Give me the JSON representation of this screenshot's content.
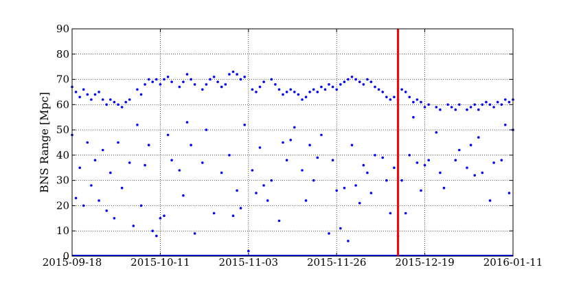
{
  "chart_data": {
    "type": "scatter",
    "title": "",
    "xlabel": "",
    "ylabel": "BNS Range [Mpc]",
    "x_axis_type": "date",
    "xlim": [
      "2015-09-18",
      "2016-01-11"
    ],
    "ylim": [
      0,
      90
    ],
    "x_tick_labels": [
      "2015-09-18",
      "2015-10-11",
      "2015-11-03",
      "2015-11-26",
      "2015-12-19",
      "2016-01-11"
    ],
    "y_tick_labels": [
      "0",
      "10",
      "20",
      "30",
      "40",
      "50",
      "60",
      "70",
      "80",
      "90"
    ],
    "y_ticks": [
      0,
      10,
      20,
      30,
      40,
      50,
      60,
      70,
      80,
      90
    ],
    "grid": true,
    "grid_style": "dotted",
    "marker_color": "#0000ff",
    "vline": {
      "x": "2015-12-12",
      "color": "#ff0000"
    },
    "series": [
      {
        "values_description_note": "",
        "points": [
          [
            "2015-09-18",
            67
          ],
          [
            "2015-09-19",
            65
          ],
          [
            "2015-09-20",
            63
          ],
          [
            "2015-09-21",
            66
          ],
          [
            "2015-09-22",
            64
          ],
          [
            "2015-09-23",
            62
          ],
          [
            "2015-09-24",
            64
          ],
          [
            "2015-09-25",
            65
          ],
          [
            "2015-09-26",
            62
          ],
          [
            "2015-09-27",
            60
          ],
          [
            "2015-09-28",
            62
          ],
          [
            "2015-09-29",
            61
          ],
          [
            "2015-09-30",
            60
          ],
          [
            "2015-10-01",
            59
          ],
          [
            "2015-10-02",
            61
          ],
          [
            "2015-10-03",
            62
          ],
          [
            "2015-10-05",
            66
          ],
          [
            "2015-10-06",
            64
          ],
          [
            "2015-10-07",
            68
          ],
          [
            "2015-10-08",
            70
          ],
          [
            "2015-10-09",
            69
          ],
          [
            "2015-10-10",
            70
          ],
          [
            "2015-10-11",
            68
          ],
          [
            "2015-10-12",
            70
          ],
          [
            "2015-10-13",
            71
          ],
          [
            "2015-10-14",
            69
          ],
          [
            "2015-10-16",
            67
          ],
          [
            "2015-10-17",
            69
          ],
          [
            "2015-10-18",
            72
          ],
          [
            "2015-10-19",
            70
          ],
          [
            "2015-10-20",
            68
          ],
          [
            "2015-10-22",
            66
          ],
          [
            "2015-10-23",
            68
          ],
          [
            "2015-10-24",
            70
          ],
          [
            "2015-10-25",
            71
          ],
          [
            "2015-10-26",
            69
          ],
          [
            "2015-10-27",
            67
          ],
          [
            "2015-10-28",
            68
          ],
          [
            "2015-10-29",
            72
          ],
          [
            "2015-10-30",
            73
          ],
          [
            "2015-10-31",
            72
          ],
          [
            "2015-11-01",
            70
          ],
          [
            "2015-11-02",
            71
          ],
          [
            "2015-11-04",
            66
          ],
          [
            "2015-11-05",
            65
          ],
          [
            "2015-11-06",
            67
          ],
          [
            "2015-11-07",
            69
          ],
          [
            "2015-11-09",
            70
          ],
          [
            "2015-11-10",
            68
          ],
          [
            "2015-11-11",
            66
          ],
          [
            "2015-11-12",
            64
          ],
          [
            "2015-11-13",
            65
          ],
          [
            "2015-11-14",
            66
          ],
          [
            "2015-11-15",
            65
          ],
          [
            "2015-11-16",
            64
          ],
          [
            "2015-11-17",
            62
          ],
          [
            "2015-11-18",
            63
          ],
          [
            "2015-11-19",
            65
          ],
          [
            "2015-11-20",
            66
          ],
          [
            "2015-11-21",
            65
          ],
          [
            "2015-11-22",
            67
          ],
          [
            "2015-11-23",
            66
          ],
          [
            "2015-11-24",
            68
          ],
          [
            "2015-11-25",
            67
          ],
          [
            "2015-11-26",
            66
          ],
          [
            "2015-11-27",
            68
          ],
          [
            "2015-11-28",
            69
          ],
          [
            "2015-11-29",
            70
          ],
          [
            "2015-11-30",
            71
          ],
          [
            "2015-12-01",
            70
          ],
          [
            "2015-12-02",
            69
          ],
          [
            "2015-12-03",
            68
          ],
          [
            "2015-12-04",
            70
          ],
          [
            "2015-12-05",
            69
          ],
          [
            "2015-12-06",
            67
          ],
          [
            "2015-12-07",
            66
          ],
          [
            "2015-12-08",
            65
          ],
          [
            "2015-12-09",
            63
          ],
          [
            "2015-12-10",
            62
          ],
          [
            "2015-12-11",
            63
          ],
          [
            "2015-12-12",
            62
          ],
          [
            "2015-12-13",
            66
          ],
          [
            "2015-12-14",
            65
          ],
          [
            "2015-12-15",
            63
          ],
          [
            "2015-12-16",
            61
          ],
          [
            "2015-12-17",
            62
          ],
          [
            "2015-12-18",
            61
          ],
          [
            "2015-12-19",
            59
          ],
          [
            "2015-12-20",
            60
          ],
          [
            "2015-12-22",
            59
          ],
          [
            "2015-12-23",
            58
          ],
          [
            "2015-12-25",
            60
          ],
          [
            "2015-12-26",
            59
          ],
          [
            "2015-12-27",
            58
          ],
          [
            "2015-12-28",
            60
          ],
          [
            "2015-12-30",
            58
          ],
          [
            "2015-12-31",
            59
          ],
          [
            "2016-01-01",
            60
          ],
          [
            "2016-01-02",
            58
          ],
          [
            "2016-01-03",
            60
          ],
          [
            "2016-01-04",
            61
          ],
          [
            "2016-01-05",
            60
          ],
          [
            "2016-01-06",
            59
          ],
          [
            "2016-01-07",
            61
          ],
          [
            "2016-01-08",
            60
          ],
          [
            "2016-01-09",
            62
          ],
          [
            "2016-01-10",
            61
          ],
          [
            "2016-01-11",
            62
          ],
          [
            "2015-09-18",
            48
          ],
          [
            "2015-09-19",
            23
          ],
          [
            "2015-09-20",
            35
          ],
          [
            "2015-09-21",
            20
          ],
          [
            "2015-09-22",
            45
          ],
          [
            "2015-09-23",
            28
          ],
          [
            "2015-09-24",
            38
          ],
          [
            "2015-09-25",
            22
          ],
          [
            "2015-09-26",
            42
          ],
          [
            "2015-09-27",
            18
          ],
          [
            "2015-09-28",
            33
          ],
          [
            "2015-09-29",
            15
          ],
          [
            "2015-09-30",
            45
          ],
          [
            "2015-10-01",
            27
          ],
          [
            "2015-10-03",
            37
          ],
          [
            "2015-10-04",
            12
          ],
          [
            "2015-10-05",
            52
          ],
          [
            "2015-10-06",
            20
          ],
          [
            "2015-10-07",
            36
          ],
          [
            "2015-10-08",
            44
          ],
          [
            "2015-10-09",
            10
          ],
          [
            "2015-10-10",
            8
          ],
          [
            "2015-10-11",
            15
          ],
          [
            "2015-10-12",
            16
          ],
          [
            "2015-10-13",
            48
          ],
          [
            "2015-10-14",
            38
          ],
          [
            "2015-10-16",
            34
          ],
          [
            "2015-10-17",
            24
          ],
          [
            "2015-10-18",
            53
          ],
          [
            "2015-10-19",
            44
          ],
          [
            "2015-10-20",
            9
          ],
          [
            "2015-10-22",
            37
          ],
          [
            "2015-10-23",
            50
          ],
          [
            "2015-10-25",
            17
          ],
          [
            "2015-10-27",
            33
          ],
          [
            "2015-10-29",
            40
          ],
          [
            "2015-10-30",
            16
          ],
          [
            "2015-10-31",
            26
          ],
          [
            "2015-11-01",
            19
          ],
          [
            "2015-11-02",
            52
          ],
          [
            "2015-11-03",
            2
          ],
          [
            "2015-11-04",
            34
          ],
          [
            "2015-11-05",
            25
          ],
          [
            "2015-11-06",
            43
          ],
          [
            "2015-11-07",
            28
          ],
          [
            "2015-11-08",
            22
          ],
          [
            "2015-11-09",
            30
          ],
          [
            "2015-11-11",
            14
          ],
          [
            "2015-11-12",
            45
          ],
          [
            "2015-11-13",
            38
          ],
          [
            "2015-11-14",
            46
          ],
          [
            "2015-11-15",
            51
          ],
          [
            "2015-11-17",
            34
          ],
          [
            "2015-11-18",
            22
          ],
          [
            "2015-11-19",
            44
          ],
          [
            "2015-11-20",
            30
          ],
          [
            "2015-11-21",
            39
          ],
          [
            "2015-11-22",
            48
          ],
          [
            "2015-11-24",
            9
          ],
          [
            "2015-11-25",
            38
          ],
          [
            "2015-11-26",
            26
          ],
          [
            "2015-11-27",
            11
          ],
          [
            "2015-11-28",
            27
          ],
          [
            "2015-11-29",
            6
          ],
          [
            "2015-11-30",
            44
          ],
          [
            "2015-12-01",
            28
          ],
          [
            "2015-12-02",
            21
          ],
          [
            "2015-12-03",
            36
          ],
          [
            "2015-12-04",
            33
          ],
          [
            "2015-12-05",
            25
          ],
          [
            "2015-12-06",
            40
          ],
          [
            "2015-12-08",
            39
          ],
          [
            "2015-12-09",
            30
          ],
          [
            "2015-12-10",
            17
          ],
          [
            "2015-12-11",
            35
          ],
          [
            "2015-12-12",
            8
          ],
          [
            "2015-12-13",
            30
          ],
          [
            "2015-12-14",
            17
          ],
          [
            "2015-12-15",
            40
          ],
          [
            "2015-12-16",
            55
          ],
          [
            "2015-12-17",
            37
          ],
          [
            "2015-12-18",
            26
          ],
          [
            "2015-12-19",
            36
          ],
          [
            "2015-12-20",
            38
          ],
          [
            "2015-12-22",
            49
          ],
          [
            "2015-12-23",
            33
          ],
          [
            "2015-12-24",
            27
          ],
          [
            "2015-12-27",
            38
          ],
          [
            "2015-12-28",
            42
          ],
          [
            "2015-12-30",
            35
          ],
          [
            "2015-12-31",
            44
          ],
          [
            "2016-01-01",
            32
          ],
          [
            "2016-01-02",
            47
          ],
          [
            "2016-01-03",
            33
          ],
          [
            "2016-01-05",
            22
          ],
          [
            "2016-01-06",
            37
          ],
          [
            "2016-01-08",
            38
          ],
          [
            "2016-01-09",
            52
          ],
          [
            "2016-01-10",
            25
          ],
          [
            "2016-01-11",
            50
          ]
        ]
      }
    ]
  }
}
